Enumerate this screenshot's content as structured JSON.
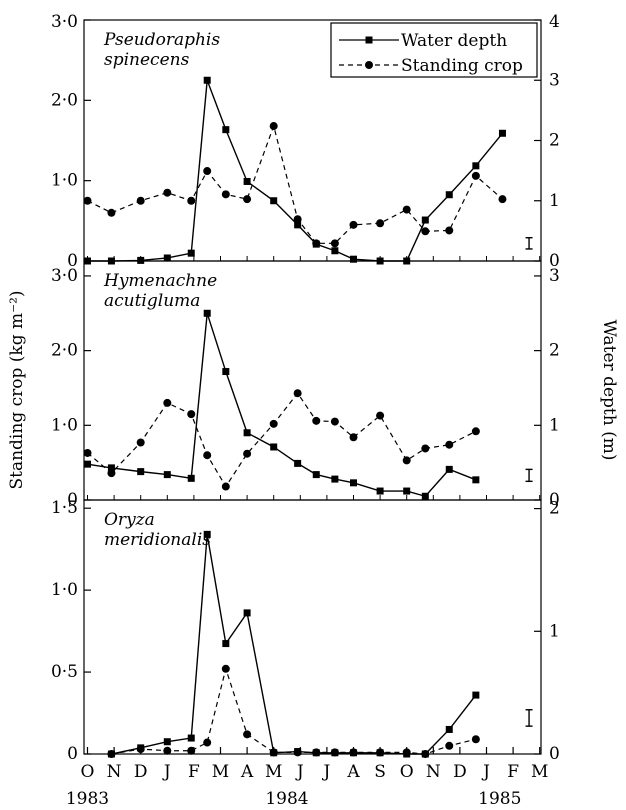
{
  "chart_data": {
    "type": "line",
    "ylabel_left": "Standing crop (kg m⁻²)",
    "ylabel_right": "Water depth (m)",
    "x_months": [
      "O",
      "N",
      "D",
      "J",
      "F",
      "M",
      "A",
      "M",
      "J",
      "J",
      "A",
      "S",
      "O",
      "N",
      "D",
      "J",
      "F",
      "M"
    ],
    "x_years": [
      {
        "label": "1983",
        "index": 0
      },
      {
        "label": "1984",
        "index": 7.5
      },
      {
        "label": "1985",
        "index": 15.5
      }
    ],
    "legend": {
      "placement": "top-right",
      "entries": [
        {
          "label": "Water depth",
          "style": "solid",
          "marker": "square"
        },
        {
          "label": "Standing crop",
          "style": "dashed",
          "marker": "circle"
        }
      ]
    },
    "panels": [
      {
        "title_line1": "Pseudoraphis",
        "title_line2": "spinecens",
        "left_ylim": [
          0,
          3.0
        ],
        "left_ticks": [
          {
            "v": 0,
            "label": "0"
          },
          {
            "v": 1.0,
            "label": "1·0"
          },
          {
            "v": 2.0,
            "label": "2·0"
          },
          {
            "v": 3.0,
            "label": "3·0"
          }
        ],
        "right_ylim": [
          0,
          4
        ],
        "right_ticks": [
          {
            "v": 0,
            "label": "0"
          },
          {
            "v": 1,
            "label": "1"
          },
          {
            "v": 2,
            "label": "2"
          },
          {
            "v": 3,
            "label": "3"
          },
          {
            "v": 4,
            "label": "4"
          }
        ],
        "error_bar": {
          "x": 16.6,
          "y": 0.22,
          "half": 0.07
        },
        "water_depth": [
          [
            0,
            0.0
          ],
          [
            0.9,
            0.0
          ],
          [
            2,
            0.01
          ],
          [
            3,
            0.05
          ],
          [
            3.9,
            0.13
          ],
          [
            4.5,
            3.0
          ],
          [
            5.2,
            2.18
          ],
          [
            6,
            1.32
          ],
          [
            7,
            1.0
          ],
          [
            7.9,
            0.6
          ],
          [
            8.6,
            0.28
          ],
          [
            9.3,
            0.17
          ],
          [
            10,
            0.03
          ],
          [
            11,
            0.0
          ],
          [
            12,
            0.0
          ],
          [
            12.7,
            0.68
          ],
          [
            13.6,
            1.1
          ],
          [
            14.6,
            1.58
          ],
          [
            15.6,
            2.12
          ]
        ],
        "standing_crop": [
          [
            0,
            0.75
          ],
          [
            0.9,
            0.6
          ],
          [
            2,
            0.75
          ],
          [
            3,
            0.85
          ],
          [
            3.9,
            0.75
          ],
          [
            4.5,
            1.12
          ],
          [
            5.2,
            0.83
          ],
          [
            6,
            0.77
          ],
          [
            7,
            1.68
          ],
          [
            7.9,
            0.52
          ],
          [
            8.6,
            0.22
          ],
          [
            9.3,
            0.22
          ],
          [
            10,
            0.45
          ],
          [
            11,
            0.47
          ],
          [
            12,
            0.64
          ],
          [
            12.7,
            0.37
          ],
          [
            13.6,
            0.38
          ],
          [
            14.6,
            1.06
          ],
          [
            15.6,
            0.77
          ]
        ]
      },
      {
        "title_line1": "Hymenachne",
        "title_line2": "acutigluma",
        "left_ylim": [
          0,
          3.2
        ],
        "left_ticks": [
          {
            "v": 0,
            "label": "0"
          },
          {
            "v": 1.0,
            "label": "1·0"
          },
          {
            "v": 2.0,
            "label": "2·0"
          },
          {
            "v": 3.0,
            "label": "3·0"
          }
        ],
        "right_ylim": [
          0,
          3.2
        ],
        "right_ticks": [
          {
            "v": 0,
            "label": "0"
          },
          {
            "v": 1,
            "label": "1"
          },
          {
            "v": 2,
            "label": "2"
          },
          {
            "v": 3,
            "label": "3"
          }
        ],
        "error_bar": {
          "x": 16.6,
          "y": 0.33,
          "half": 0.08
        },
        "water_depth": [
          [
            0,
            0.48
          ],
          [
            0.9,
            0.43
          ],
          [
            2,
            0.38
          ],
          [
            3,
            0.34
          ],
          [
            3.9,
            0.29
          ],
          [
            4.5,
            2.5
          ],
          [
            5.2,
            1.72
          ],
          [
            6,
            0.9
          ],
          [
            7,
            0.71
          ],
          [
            7.9,
            0.49
          ],
          [
            8.6,
            0.34
          ],
          [
            9.3,
            0.28
          ],
          [
            10,
            0.23
          ],
          [
            11,
            0.12
          ],
          [
            12,
            0.12
          ],
          [
            12.7,
            0.05
          ],
          [
            13.6,
            0.41
          ],
          [
            14.6,
            0.27
          ]
        ],
        "standing_crop": [
          [
            0,
            0.63
          ],
          [
            0.9,
            0.36
          ],
          [
            2,
            0.77
          ],
          [
            3,
            1.3
          ],
          [
            3.9,
            1.15
          ],
          [
            4.5,
            0.6
          ],
          [
            5.2,
            0.18
          ],
          [
            6,
            0.62
          ],
          [
            7,
            1.02
          ],
          [
            7.9,
            1.43
          ],
          [
            8.6,
            1.06
          ],
          [
            9.3,
            1.05
          ],
          [
            10,
            0.84
          ],
          [
            11,
            1.13
          ],
          [
            12,
            0.53
          ],
          [
            12.7,
            0.69
          ],
          [
            13.6,
            0.74
          ],
          [
            14.6,
            0.92
          ]
        ]
      },
      {
        "title_line1": "Oryza",
        "title_line2": "meridionalis",
        "left_ylim": [
          0,
          1.55
        ],
        "left_ticks": [
          {
            "v": 0,
            "label": "0"
          },
          {
            "v": 0.5,
            "label": "0·5"
          },
          {
            "v": 1.0,
            "label": "1·0"
          },
          {
            "v": 1.5,
            "label": "1·5"
          }
        ],
        "right_ylim": [
          0,
          2.07
        ],
        "right_ticks": [
          {
            "v": 0,
            "label": "0"
          },
          {
            "v": 1,
            "label": "1"
          },
          {
            "v": 2,
            "label": "2"
          }
        ],
        "error_bar": {
          "x": 16.6,
          "y": 0.22,
          "half": 0.05
        },
        "water_depth": [
          [
            0.9,
            0.0
          ],
          [
            2,
            0.05
          ],
          [
            3,
            0.1
          ],
          [
            3.9,
            0.13
          ],
          [
            4.5,
            1.79
          ],
          [
            5.2,
            0.9
          ],
          [
            6,
            1.15
          ],
          [
            7,
            0.01
          ],
          [
            7.9,
            0.02
          ],
          [
            8.6,
            0.01
          ],
          [
            9.3,
            0.01
          ],
          [
            10,
            0.01
          ],
          [
            11,
            0.01
          ],
          [
            12,
            0.0
          ],
          [
            12.7,
            0.0
          ],
          [
            13.6,
            0.2
          ],
          [
            14.6,
            0.48
          ]
        ],
        "standing_crop": [
          [
            0.9,
            0.0
          ],
          [
            2,
            0.03
          ],
          [
            3,
            0.02
          ],
          [
            3.9,
            0.02
          ],
          [
            4.5,
            0.07
          ],
          [
            5.2,
            0.52
          ],
          [
            6,
            0.12
          ],
          [
            7,
            0.01
          ],
          [
            7.9,
            0.01
          ],
          [
            8.6,
            0.01
          ],
          [
            9.3,
            0.01
          ],
          [
            10,
            0.01
          ],
          [
            11,
            0.01
          ],
          [
            12,
            0.01
          ],
          [
            12.7,
            0.0
          ],
          [
            13.6,
            0.05
          ],
          [
            14.6,
            0.09
          ]
        ]
      }
    ]
  }
}
